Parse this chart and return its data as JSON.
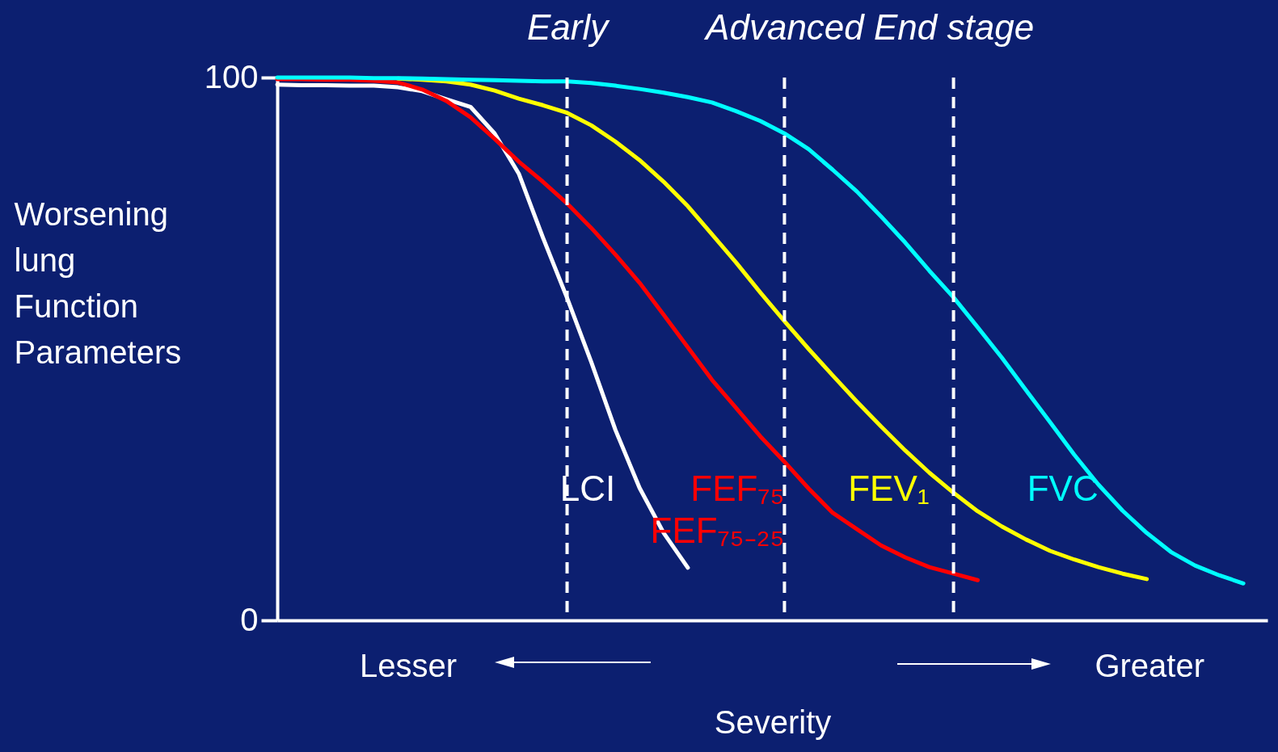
{
  "chart_data": {
    "type": "line",
    "ylabel": "Worsening lung Function Parameters",
    "xlabel": "Severity",
    "categories": [
      null,
      null,
      null,
      null,
      null,
      null,
      null,
      null,
      null,
      null,
      null,
      null,
      "Early",
      null,
      null,
      null,
      null,
      null,
      null,
      null,
      null,
      "Advanced",
      null,
      null,
      null,
      null,
      null,
      null,
      "End stage",
      null,
      null,
      null,
      null,
      null,
      null,
      null,
      null,
      null,
      null,
      null,
      null,
      null
    ],
    "ylim": [
      0,
      100
    ],
    "yticks": [
      0,
      100
    ],
    "grid": false,
    "marker": "none",
    "line_style": "solid",
    "annotations": [
      "Lesser",
      "Greater"
    ],
    "ref_lines": [
      {
        "axis": "x",
        "value": "Early",
        "color": "#ffffff",
        "line_style": "dashed"
      },
      {
        "axis": "x",
        "value": "Advanced",
        "color": "#ffffff",
        "line_style": "dashed"
      },
      {
        "axis": "x",
        "value": "End stage",
        "color": "#ffffff",
        "line_style": "dashed"
      }
    ],
    "series": [
      {
        "name": "LCI",
        "color": "#ffffff",
        "values": [
          98.7,
          98.6,
          98.6,
          98.5,
          98.5,
          98.2,
          97.5,
          96,
          94.6,
          89.7,
          82.3,
          70.5,
          59.4,
          47.6,
          35.1,
          24.4,
          16.1,
          9.7,
          null,
          null,
          null,
          null,
          null,
          null,
          null,
          null,
          null,
          null,
          null,
          null,
          null,
          null,
          null,
          null,
          null,
          null,
          null,
          null,
          null,
          null,
          null,
          null
        ]
      },
      {
        "name": "FEF₇₅ FEF₇₅₋₂₅",
        "color": "#ff0000",
        "values": [
          99.7,
          99.7,
          99.6,
          99.6,
          99.4,
          99.1,
          97.8,
          95.7,
          92.7,
          88.7,
          84.5,
          80.8,
          76.8,
          72.3,
          67.4,
          62.2,
          56.3,
          50.3,
          44.3,
          39.1,
          33.9,
          29.2,
          24.3,
          19.8,
          16.8,
          13.8,
          11.6,
          9.8,
          8.6,
          7.4,
          null,
          null,
          null,
          null,
          null,
          null,
          null,
          null,
          null,
          null,
          null,
          null
        ]
      },
      {
        "name": "FEV₁",
        "color": "#ffff00",
        "values": [
          null,
          null,
          null,
          null,
          null,
          99.8,
          99.6,
          99.3,
          98.7,
          97.6,
          96.1,
          94.9,
          93.5,
          91.2,
          88.2,
          84.8,
          80.8,
          76.3,
          71.1,
          65.9,
          60.4,
          55.1,
          50,
          45.1,
          40.3,
          35.7,
          31.3,
          27.2,
          23.5,
          20.1,
          17.3,
          14.9,
          12.8,
          11.2,
          9.8,
          8.6,
          7.6,
          null,
          null,
          null,
          null,
          null
        ]
      },
      {
        "name": "FVC",
        "color": "#00ffff",
        "values": [
          100,
          100,
          100,
          100,
          99.9,
          99.9,
          99.8,
          99.7,
          99.6,
          99.5,
          99.4,
          99.3,
          99.3,
          99,
          98.5,
          97.9,
          97.2,
          96.4,
          95.4,
          93.8,
          92,
          89.7,
          86.8,
          83,
          79,
          74.4,
          69.6,
          64.4,
          59.5,
          54,
          48.4,
          42.4,
          36.5,
          30.5,
          25,
          20.2,
          16.1,
          12.6,
          10.1,
          8.3,
          6.8,
          null
        ]
      }
    ]
  }
}
